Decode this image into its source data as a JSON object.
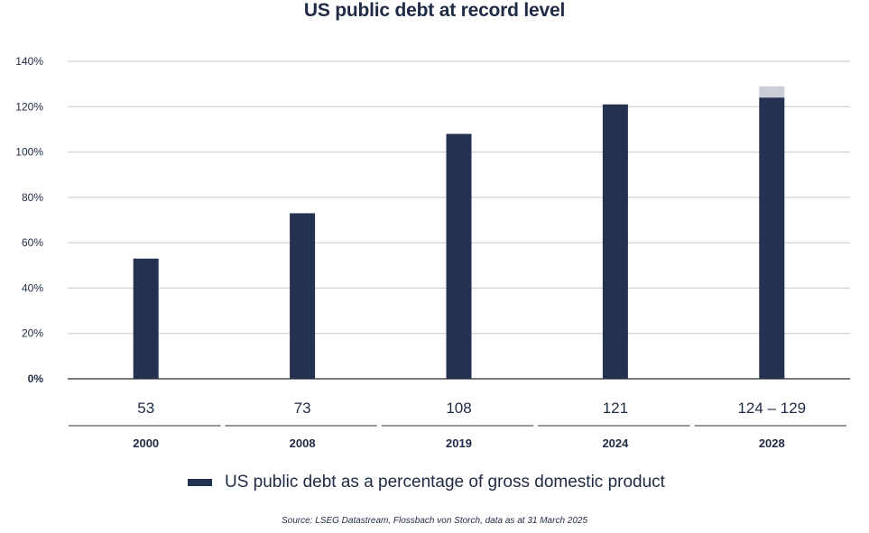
{
  "chart_data": {
    "type": "bar",
    "title": "US public debt at record level",
    "categories": [
      "2000",
      "2008",
      "2019",
      "2024",
      "2028"
    ],
    "series": [
      {
        "name": "US public debt as a percentage of gross domestic product",
        "values": [
          53,
          73,
          108,
          121,
          124
        ],
        "range_upper": [
          null,
          null,
          null,
          null,
          129
        ],
        "color": "#243150",
        "range_color": "#cbced5"
      }
    ],
    "value_labels": [
      "53",
      "73",
      "108",
      "121",
      "124 – 129"
    ],
    "yticks": [
      "0%",
      "20%",
      "40%",
      "60%",
      "80%",
      "100%",
      "120%",
      "140%"
    ],
    "ylim": [
      0,
      140
    ],
    "grid": true,
    "legend_position": "bottom"
  },
  "source": "Source: LSEG Datastream, Flossbach von Storch, data as at 31 March 2025"
}
